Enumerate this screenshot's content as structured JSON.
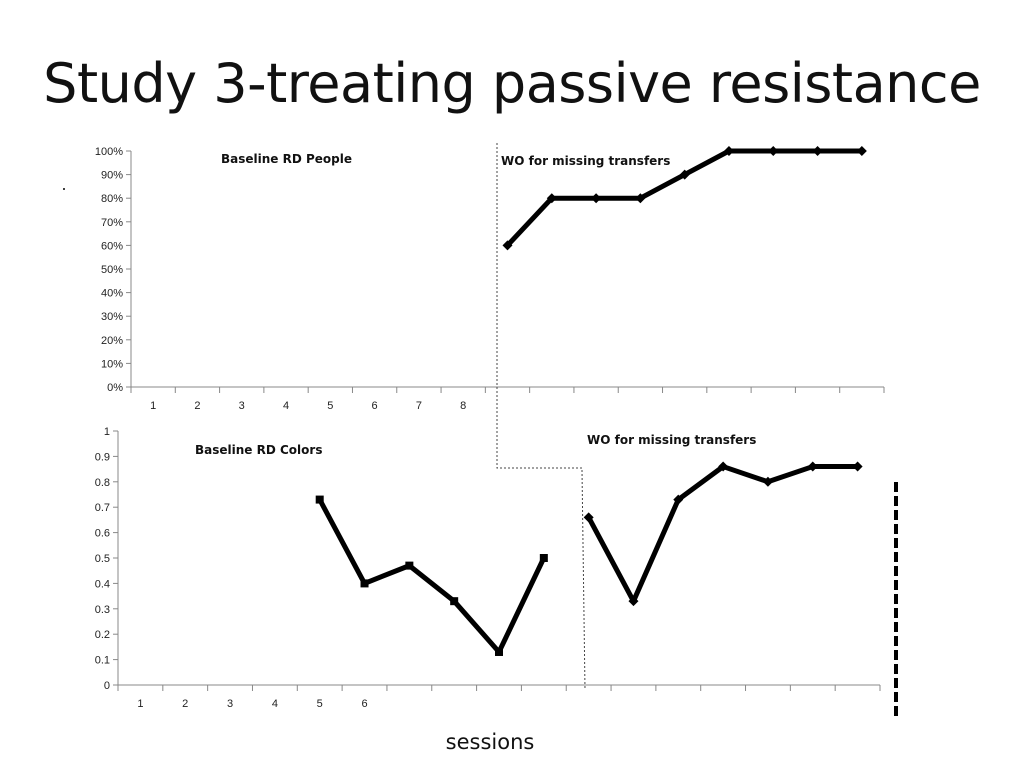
{
  "slide": {
    "title": "Study 3-treating passive resistance",
    "bullet": "·",
    "xlabel": "sessions"
  },
  "chart_data": [
    {
      "type": "line",
      "y_format": "percent",
      "ylim": [
        0,
        1
      ],
      "y_ticks": [
        0,
        0.1,
        0.2,
        0.3,
        0.4,
        0.5,
        0.6,
        0.7,
        0.8,
        0.9,
        1
      ],
      "x_tick_labels": [
        "1",
        "2",
        "3",
        "4",
        "5",
        "6",
        "7",
        "8"
      ],
      "grid": false,
      "annotations": [
        "Baseline RD People",
        "WO for missing transfers"
      ],
      "series": [
        {
          "marker": "diamond",
          "x": [
            9,
            10,
            11,
            12,
            13,
            14,
            15,
            16,
            17
          ],
          "values": [
            0.6,
            0.8,
            0.8,
            0.8,
            0.9,
            1.0,
            1.0,
            1.0,
            1.0
          ]
        }
      ]
    },
    {
      "type": "line",
      "y_format": "decimal",
      "ylim": [
        0,
        1
      ],
      "y_ticks": [
        0,
        0.1,
        0.2,
        0.3,
        0.4,
        0.5,
        0.6,
        0.7,
        0.8,
        0.9,
        1
      ],
      "x_tick_labels": [
        "1",
        "2",
        "3",
        "4",
        "5",
        "6"
      ],
      "grid": false,
      "annotations": [
        "Baseline RD Colors",
        "WO for missing transfers"
      ],
      "series": [
        {
          "marker": "square",
          "x": [
            5,
            6,
            7,
            8,
            9,
            10
          ],
          "values": [
            0.73,
            0.4,
            0.47,
            0.33,
            0.13,
            0.5
          ]
        },
        {
          "marker": "diamond",
          "x": [
            11,
            12,
            13,
            14,
            15,
            16,
            17
          ],
          "values": [
            0.66,
            0.33,
            0.73,
            0.86,
            0.8,
            0.86,
            0.86
          ]
        }
      ]
    }
  ]
}
